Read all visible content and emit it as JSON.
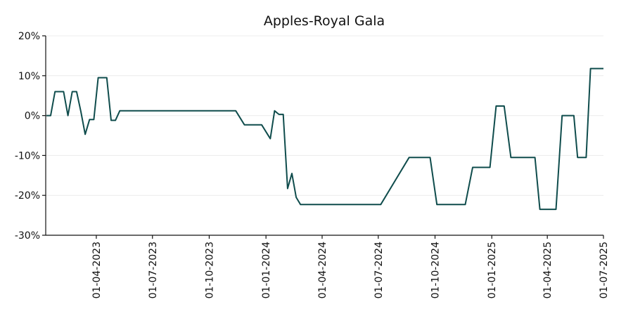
{
  "chart_data": {
    "type": "line",
    "title": "Apples-Royal Gala",
    "xlabel": "",
    "ylabel": "",
    "ylim": [
      -30,
      20
    ],
    "xlim": [
      "2023-01-09",
      "2025-07-01"
    ],
    "grid": {
      "y": true,
      "x": false
    },
    "y_ticks": [
      -30,
      -20,
      -10,
      0,
      10,
      20
    ],
    "y_tick_labels": [
      "-30%",
      "-20%",
      "-10%",
      "0%",
      "10%",
      "20%"
    ],
    "x_ticks": [
      "2023-04-01",
      "2023-07-01",
      "2023-10-01",
      "2024-01-01",
      "2024-04-01",
      "2024-07-01",
      "2024-10-01",
      "2025-01-01",
      "2025-04-01",
      "2025-07-01"
    ],
    "x_tick_labels": [
      "01-04-2023",
      "01-07-2023",
      "01-10-2023",
      "01-01-2024",
      "01-04-2024",
      "01-07-2024",
      "01-10-2024",
      "01-01-2025",
      "01-04-2025",
      "01-07-2025"
    ],
    "series": [
      {
        "color": "#0f4c4c",
        "points": [
          {
            "x": "2023-01-10",
            "y": 0.0
          },
          {
            "x": "2023-01-17",
            "y": 0.0
          },
          {
            "x": "2023-01-24",
            "y": 6.0
          },
          {
            "x": "2023-01-31",
            "y": 6.0
          },
          {
            "x": "2023-02-07",
            "y": 6.0
          },
          {
            "x": "2023-02-14",
            "y": 0.0
          },
          {
            "x": "2023-02-21",
            "y": 6.0
          },
          {
            "x": "2023-02-28",
            "y": 6.0
          },
          {
            "x": "2023-03-07",
            "y": 1.0
          },
          {
            "x": "2023-03-14",
            "y": -4.7
          },
          {
            "x": "2023-03-21",
            "y": -1.0
          },
          {
            "x": "2023-03-28",
            "y": -1.0
          },
          {
            "x": "2023-04-04",
            "y": 9.5
          },
          {
            "x": "2023-04-11",
            "y": 9.5
          },
          {
            "x": "2023-04-18",
            "y": 9.5
          },
          {
            "x": "2023-04-25",
            "y": -1.2
          },
          {
            "x": "2023-05-02",
            "y": -1.2
          },
          {
            "x": "2023-05-09",
            "y": 1.2
          },
          {
            "x": "2023-06-01",
            "y": 1.2
          },
          {
            "x": "2023-08-01",
            "y": 1.2
          },
          {
            "x": "2023-10-01",
            "y": 1.2
          },
          {
            "x": "2023-11-13",
            "y": 1.2
          },
          {
            "x": "2023-11-27",
            "y": -2.3
          },
          {
            "x": "2023-12-11",
            "y": -2.3
          },
          {
            "x": "2023-12-25",
            "y": -2.3
          },
          {
            "x": "2024-01-08",
            "y": -5.8
          },
          {
            "x": "2024-01-15",
            "y": 1.2
          },
          {
            "x": "2024-01-22",
            "y": 0.3
          },
          {
            "x": "2024-01-29",
            "y": 0.3
          },
          {
            "x": "2024-02-05",
            "y": -18.3
          },
          {
            "x": "2024-02-12",
            "y": -14.5
          },
          {
            "x": "2024-02-19",
            "y": -20.5
          },
          {
            "x": "2024-02-26",
            "y": -22.3
          },
          {
            "x": "2024-04-01",
            "y": -22.3
          },
          {
            "x": "2024-05-15",
            "y": -22.3
          },
          {
            "x": "2024-07-05",
            "y": -22.3
          },
          {
            "x": "2024-08-20",
            "y": -10.5
          },
          {
            "x": "2024-09-10",
            "y": -10.5
          },
          {
            "x": "2024-09-23",
            "y": -10.5
          },
          {
            "x": "2024-10-04",
            "y": -22.3
          },
          {
            "x": "2024-11-01",
            "y": -22.3
          },
          {
            "x": "2024-11-19",
            "y": -22.3
          },
          {
            "x": "2024-12-01",
            "y": -13.0
          },
          {
            "x": "2024-12-15",
            "y": -13.0
          },
          {
            "x": "2024-12-29",
            "y": -13.0
          },
          {
            "x": "2025-01-08",
            "y": 2.4
          },
          {
            "x": "2025-01-15",
            "y": 2.4
          },
          {
            "x": "2025-01-21",
            "y": 2.4
          },
          {
            "x": "2025-02-01",
            "y": -10.5
          },
          {
            "x": "2025-02-15",
            "y": -10.5
          },
          {
            "x": "2025-03-01",
            "y": -10.5
          },
          {
            "x": "2025-03-12",
            "y": -10.5
          },
          {
            "x": "2025-03-20",
            "y": -23.5
          },
          {
            "x": "2025-04-01",
            "y": -23.5
          },
          {
            "x": "2025-04-15",
            "y": -23.5
          },
          {
            "x": "2025-04-25",
            "y": 0.0
          },
          {
            "x": "2025-05-05",
            "y": 0.0
          },
          {
            "x": "2025-05-14",
            "y": 0.0
          },
          {
            "x": "2025-05-20",
            "y": -10.5
          },
          {
            "x": "2025-05-27",
            "y": -10.5
          },
          {
            "x": "2025-06-03",
            "y": -10.5
          },
          {
            "x": "2025-06-10",
            "y": 11.8
          },
          {
            "x": "2025-06-17",
            "y": 11.8
          },
          {
            "x": "2025-06-24",
            "y": 11.8
          },
          {
            "x": "2025-07-01",
            "y": 11.8
          }
        ]
      }
    ]
  }
}
